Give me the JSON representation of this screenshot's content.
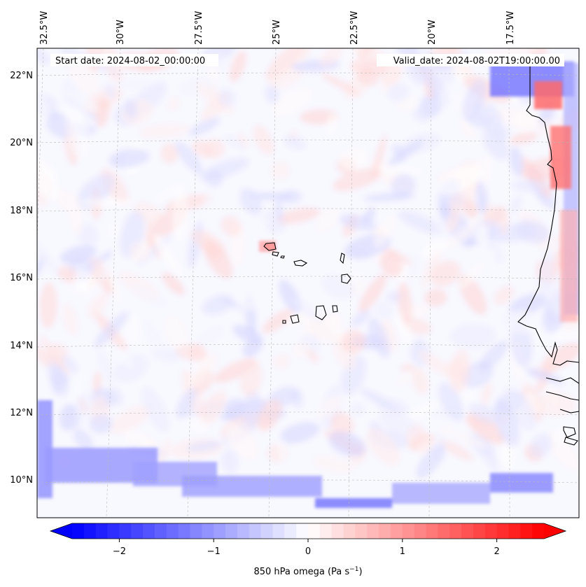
{
  "map": {
    "start_label": "Start date: 2024-08-02_00:00:00",
    "valid_label": "Valid_date: 2024-08-02T19:00:00.00",
    "lon_labels": [
      "32.5°W",
      "30°W",
      "27.5°W",
      "25°W",
      "22.5°W",
      "20°W",
      "17.5°W"
    ],
    "lat_labels": [
      "22°N",
      "20°N",
      "18°N",
      "16°N",
      "14°N",
      "12°N",
      "10°N"
    ]
  },
  "colorbar": {
    "tick_labels": [
      "−2",
      "−1",
      "0",
      "1",
      "2"
    ],
    "tick_values": [
      -2,
      -1,
      0,
      1,
      2
    ],
    "range": [
      -2.5,
      2.5
    ],
    "label_main": "850 hPa omega (Pa s",
    "label_exp": "−1",
    "label_close": ")",
    "colors": {
      "neg": "#0000ff",
      "mid": "#ffffff",
      "pos": "#ff0000"
    }
  }
}
